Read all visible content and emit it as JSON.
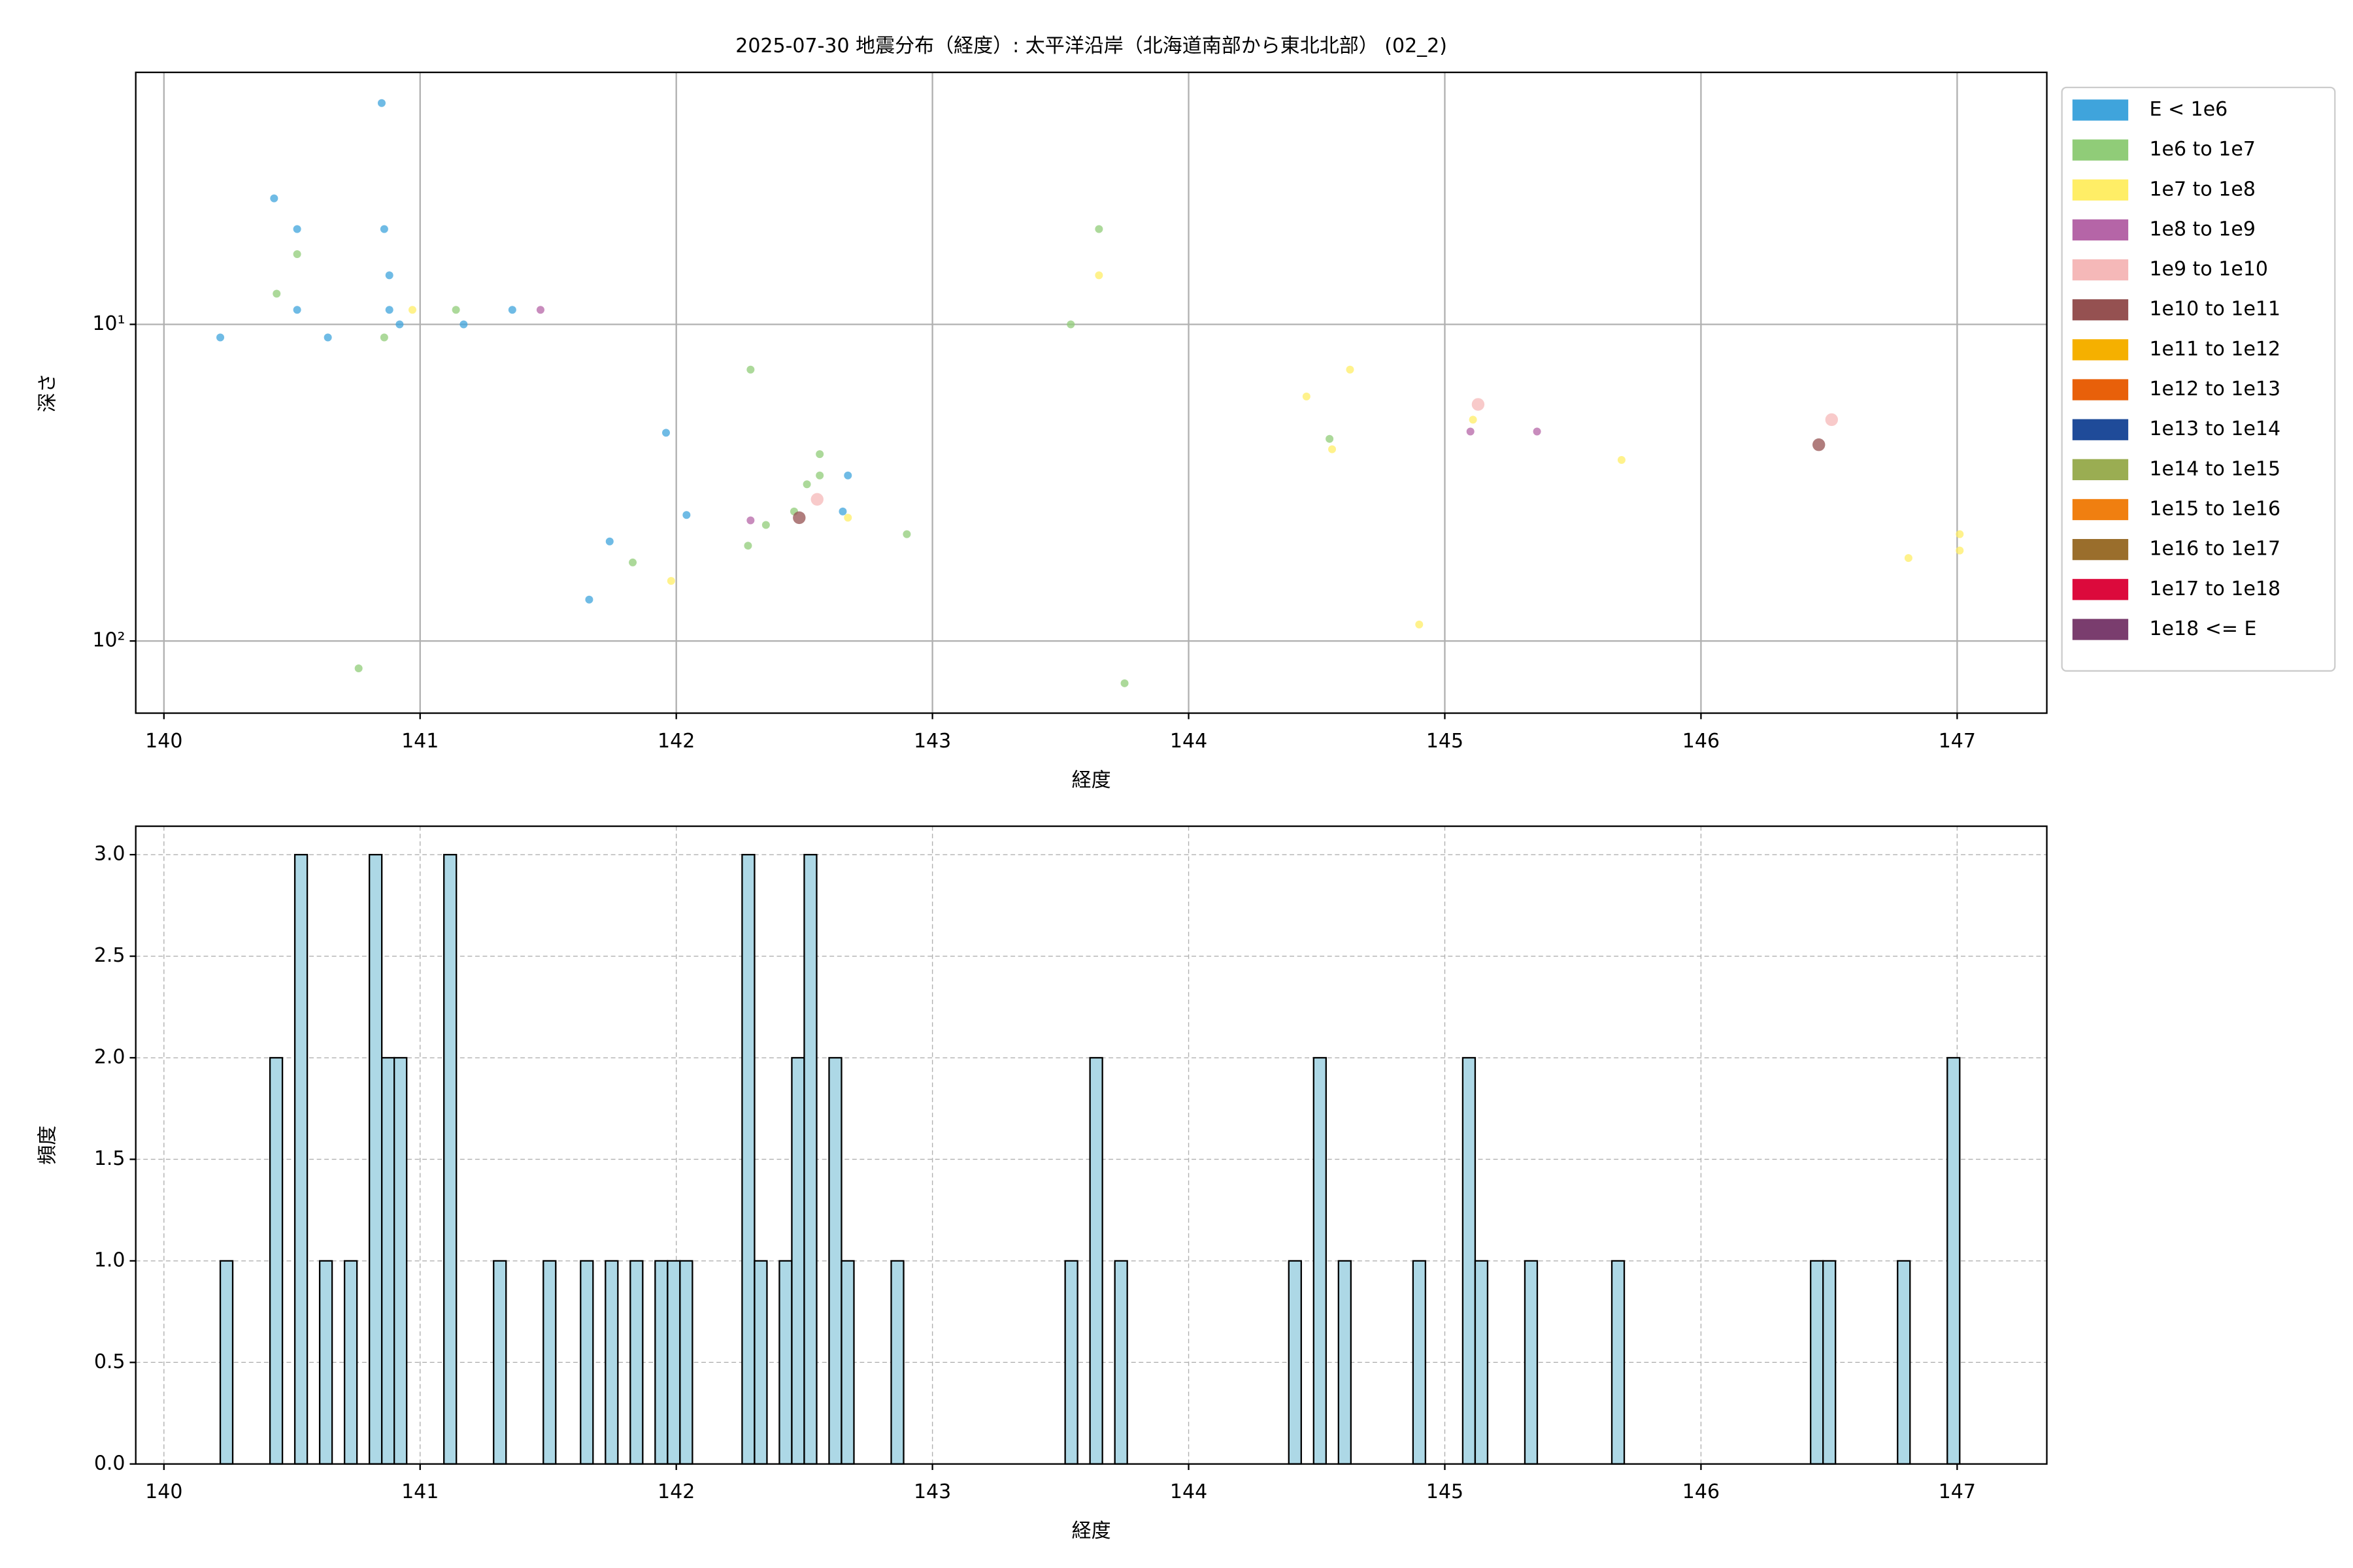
{
  "chart_data": [
    {
      "type": "scatter",
      "title": "2025-07-30 地震分布（経度）: 太平洋沿岸（北海道南部から東北北部） (02_2)",
      "xlabel": "経度",
      "ylabel": "深さ",
      "xlim": [
        139.89,
        147.35
      ],
      "xticks": [
        140,
        141,
        142,
        143,
        144,
        145,
        146,
        147
      ],
      "yscale": "log",
      "ylim": [
        169,
        1.6
      ],
      "yticks": [
        {
          "value": 10,
          "label": "10¹"
        },
        {
          "value": 100,
          "label": "10²"
        }
      ],
      "grid": true,
      "grid_style": "solid",
      "legend": "outside right upper",
      "series": [
        {
          "name": "E < 1e6",
          "color": "#3fa4dc",
          "x": [
            140.22,
            140.43,
            140.52,
            140.52,
            140.64,
            140.85,
            140.86,
            140.88,
            140.88,
            140.92,
            141.17,
            141.36,
            141.96,
            142.04,
            141.66,
            141.74,
            142.65,
            142.67
          ],
          "y": [
            11,
            4,
            5,
            9,
            11,
            2,
            5,
            7,
            9,
            10,
            10,
            9,
            22,
            40,
            74,
            48.5,
            39,
            30
          ]
        },
        {
          "name": "1e6 to 1e7",
          "color": "#90cc78",
          "x": [
            140.44,
            140.52,
            140.86,
            141.14,
            140.76,
            141.83,
            142.29,
            142.28,
            142.35,
            142.46,
            142.51,
            142.56,
            142.56,
            142.9,
            143.54,
            143.65,
            143.75,
            144.55
          ],
          "y": [
            8,
            6,
            11,
            9,
            122,
            56.5,
            13.9,
            50,
            43,
            39,
            32,
            30,
            25.7,
            46,
            10,
            5,
            136,
            23
          ]
        },
        {
          "name": "1e7 to 1e8",
          "color": "#ffee66",
          "x": [
            140.97,
            141.98,
            142.67,
            143.65,
            144.46,
            144.56,
            144.63,
            144.9,
            145.11,
            145.69,
            146.81,
            147.01,
            147.01
          ],
          "y": [
            9,
            64.6,
            40.8,
            7,
            16.9,
            24.8,
            13.9,
            88.7,
            20,
            26.8,
            54.7,
            51.8,
            46
          ]
        },
        {
          "name": "1e8 to 1e9",
          "color": "#b565a7",
          "x": [
            141.47,
            142.29,
            145.1,
            145.36
          ],
          "y": [
            9,
            41.6,
            21.8,
            21.8
          ]
        },
        {
          "name": "1e9 to 1e10",
          "color": "#f5b8b8",
          "x": [
            142.55,
            145.13,
            146.51
          ],
          "y": [
            35.7,
            17.9,
            20
          ]
        },
        {
          "name": "1e10 to 1e11",
          "color": "#955151",
          "x": [
            142.48,
            146.46
          ],
          "y": [
            40.8,
            24
          ]
        },
        {
          "name": "1e11 to 1e12",
          "color": "#f5b000",
          "x": [],
          "y": []
        },
        {
          "name": "1e12 to 1e13",
          "color": "#e8600a",
          "x": [],
          "y": []
        },
        {
          "name": "1e13 to 1e14",
          "color": "#1f4b99",
          "x": [],
          "y": []
        },
        {
          "name": "1e14 to 1e15",
          "color": "#9aad52",
          "x": [],
          "y": []
        },
        {
          "name": "1e15 to 1e16",
          "color": "#f07f10",
          "x": [],
          "y": []
        },
        {
          "name": "1e16 to 1e17",
          "color": "#9a6e2c",
          "x": [],
          "y": []
        },
        {
          "name": "1e17 to 1e18",
          "color": "#dc0a3c",
          "x": [],
          "y": []
        },
        {
          "name": "1e18 <= E",
          "color": "#7a3d6e",
          "x": [],
          "y": []
        }
      ]
    },
    {
      "type": "histogram",
      "xlabel": "経度",
      "ylabel": "頻度",
      "xlim": [
        139.89,
        147.35
      ],
      "xticks": [
        140,
        141,
        142,
        143,
        144,
        145,
        146,
        147
      ],
      "ylim": [
        0,
        3.14
      ],
      "yticks": [
        {
          "value": 0,
          "label": "0.0"
        },
        0.5,
        {
          "value": 1,
          "label": "1.0"
        },
        1.5,
        {
          "value": 2,
          "label": "2.0"
        },
        2.5,
        {
          "value": 3,
          "label": "3.0"
        }
      ],
      "grid": true,
      "grid_style": "dashed",
      "color": "#add8e6",
      "edgecolor": "#000000",
      "bins": [
        140.22,
        140.2685,
        140.317,
        140.3655,
        140.414,
        140.4625,
        140.511,
        140.5595,
        140.608,
        140.6565,
        140.705,
        140.7535,
        140.802,
        140.8505,
        140.899,
        140.9475,
        140.996,
        141.0445,
        141.093,
        141.1415,
        141.19,
        141.2385,
        141.287,
        141.3355,
        141.384,
        141.4325,
        141.481,
        141.5295,
        141.578,
        141.6265,
        141.675,
        141.7235,
        141.772,
        141.8205,
        141.869,
        141.9175,
        141.966,
        142.0145,
        142.063,
        142.1115,
        142.16,
        142.2085,
        142.257,
        142.3055,
        142.354,
        142.4025,
        142.451,
        142.4995,
        142.548,
        142.5965,
        142.645,
        142.6935,
        142.742,
        142.7905,
        142.839,
        142.8875,
        142.936,
        142.9845,
        143.033,
        143.0815,
        143.13,
        143.1785,
        143.227,
        143.2755,
        143.324,
        143.3725,
        143.421,
        143.4695,
        143.518,
        143.5665,
        143.615,
        143.6635,
        143.712,
        143.7605,
        143.809,
        143.8575,
        143.906,
        143.9545,
        144.003,
        144.0515,
        144.1,
        144.1485,
        144.197,
        144.2455,
        144.294,
        144.3425,
        144.391,
        144.4395,
        144.488,
        144.5365,
        144.585,
        144.6335,
        144.682,
        144.7305,
        144.779,
        144.8275,
        144.876,
        144.9245,
        144.973,
        145.0215,
        145.07,
        145.1185,
        145.167,
        145.2155,
        145.264,
        145.3125,
        145.361,
        145.4095,
        145.458,
        145.5065,
        145.555,
        145.6035,
        145.652,
        145.7005,
        145.749,
        145.7975,
        145.846,
        145.8945,
        145.943,
        145.9915,
        146.04,
        146.0885,
        146.137,
        146.1855,
        146.234,
        146.2825,
        146.331,
        146.3795,
        146.428,
        146.4765,
        146.525,
        146.5735,
        146.622,
        146.6705,
        146.719,
        146.7675,
        146.816,
        146.8645,
        146.913,
        146.9615,
        147.01
      ],
      "counts": [
        1,
        0,
        0,
        0,
        2,
        0,
        3,
        0,
        1,
        0,
        1,
        0,
        3,
        2,
        2,
        0,
        0,
        0,
        3,
        0,
        0,
        0,
        1,
        0,
        0,
        0,
        1,
        0,
        0,
        1,
        0,
        1,
        0,
        1,
        0,
        1,
        1,
        1,
        0,
        0,
        0,
        0,
        3,
        1,
        0,
        1,
        2,
        3,
        0,
        2,
        1,
        0,
        0,
        0,
        1,
        0,
        0,
        0,
        0,
        0,
        0,
        0,
        0,
        0,
        0,
        0,
        0,
        0,
        1,
        0,
        2,
        0,
        1,
        0,
        0,
        0,
        0,
        0,
        0,
        0,
        0,
        0,
        0,
        0,
        0,
        0,
        1,
        0,
        2,
        0,
        1,
        0,
        0,
        0,
        0,
        0,
        1,
        0,
        0,
        0,
        2,
        1,
        0,
        0,
        0,
        1,
        0,
        0,
        0,
        0,
        0,
        0,
        1,
        0,
        0,
        0,
        0,
        0,
        0,
        0,
        0,
        0,
        0,
        0,
        0,
        0,
        0,
        0,
        1,
        1,
        0,
        0,
        0,
        0,
        0,
        1,
        0,
        0,
        0,
        2
      ]
    }
  ]
}
